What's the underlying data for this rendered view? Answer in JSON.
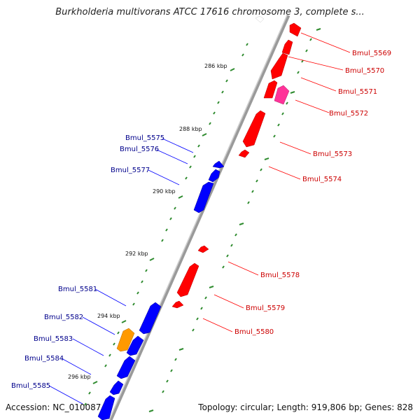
{
  "title": "Burkholderia multivorans ATCC 17616 chromosome 3, complete s...",
  "accession": "Accession: NC_010087",
  "topology_info": "Topology: circular; Length: 919,806 bp; Genes: 828",
  "ticks": [
    {
      "label": "286 kbp"
    },
    {
      "label": "288 kbp"
    },
    {
      "label": "290 kbp"
    },
    {
      "label": "292 kbp"
    },
    {
      "label": "294 kbp"
    },
    {
      "label": "296 kbp"
    }
  ],
  "reverse_labels": [
    {
      "label": "Bmul_5569"
    },
    {
      "label": "Bmul_5570"
    },
    {
      "label": "Bmul_5571"
    },
    {
      "label": "Bmul_5572"
    },
    {
      "label": "Bmul_5573"
    },
    {
      "label": "Bmul_5574"
    },
    {
      "label": "Bmul_5578"
    },
    {
      "label": "Bmul_5579"
    },
    {
      "label": "Bmul_5580"
    }
  ],
  "forward_labels": [
    {
      "label": "Bmul_5575"
    },
    {
      "label": "Bmul_5576"
    },
    {
      "label": "Bmul_5577"
    },
    {
      "label": "Bmul_5581"
    },
    {
      "label": "Bmul_5582"
    },
    {
      "label": "Bmul_5583"
    },
    {
      "label": "Bmul_5584"
    },
    {
      "label": "Bmul_5585"
    }
  ],
  "colors": {
    "reverse_gene": "#ff0000",
    "forward_gene": "#0000ff",
    "rrna_gene": "#ff3399",
    "other_gene": "#ff9900",
    "backbone": "#888888",
    "tick": "#228b22"
  }
}
